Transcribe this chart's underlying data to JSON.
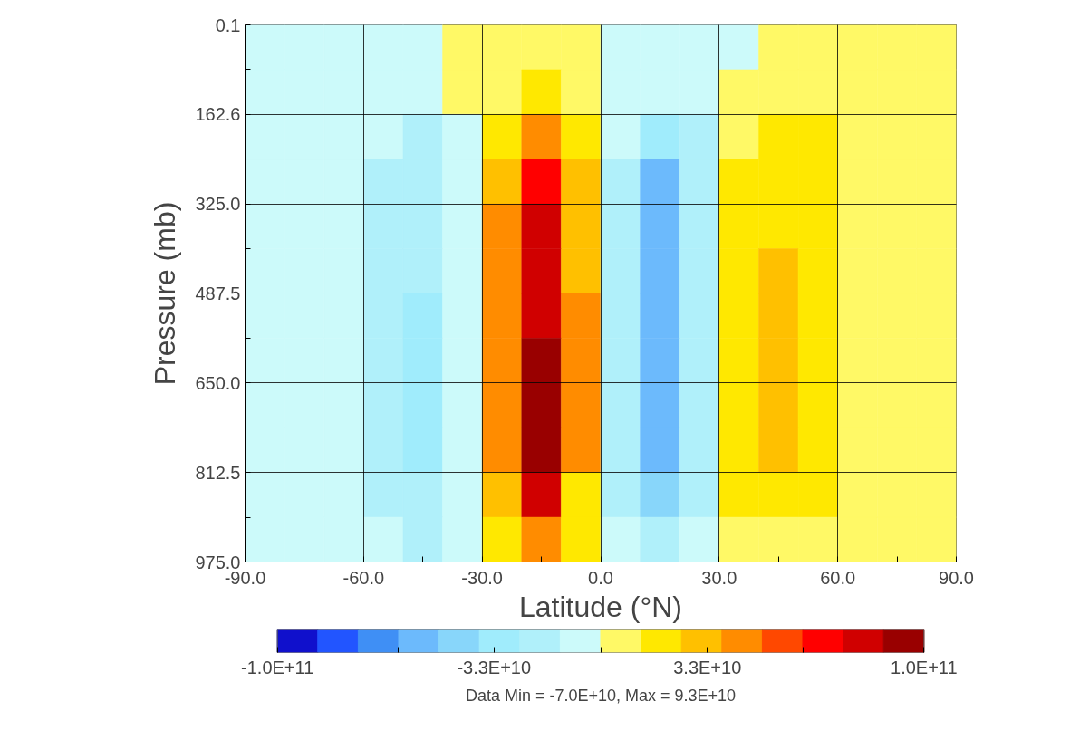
{
  "chart_data": {
    "type": "heatmap",
    "xlabel": "Latitude (°N)",
    "ylabel": "Pressure (mb)",
    "xlim": [
      -90,
      90
    ],
    "ylim": [
      975,
      0.1
    ],
    "xticks": [
      {
        "value": -90,
        "label": "-90.0"
      },
      {
        "value": -75,
        "label": null
      },
      {
        "value": -60,
        "label": "-60.0"
      },
      {
        "value": -45,
        "label": null
      },
      {
        "value": -30,
        "label": "-30.0"
      },
      {
        "value": -15,
        "label": null
      },
      {
        "value": 0,
        "label": "0.0"
      },
      {
        "value": 15,
        "label": null
      },
      {
        "value": 30,
        "label": "30.0"
      },
      {
        "value": 45,
        "label": null
      },
      {
        "value": 60,
        "label": "60.0"
      },
      {
        "value": 75,
        "label": null
      },
      {
        "value": 90,
        "label": "90.0"
      }
    ],
    "yticks": [
      0.1,
      {
        "value": 81.35,
        "label": null
      },
      162.6,
      {
        "value": 243.8,
        "label": null
      },
      {
        "value": 325,
        "label": "325.0"
      },
      {
        "value": 406.25,
        "label": null
      },
      487.5,
      {
        "value": 568.75,
        "label": null
      },
      {
        "value": 650,
        "label": "650.0"
      },
      {
        "value": 731.25,
        "label": null
      },
      812.5,
      {
        "value": 893.75,
        "label": null
      },
      {
        "value": 975,
        "label": "975.0"
      }
    ],
    "grid": true,
    "clim": [
      -100000000000.0,
      100000000000.0
    ],
    "cticks": [
      {
        "value": -100000000000.0,
        "label": "-1.0E+11"
      },
      {
        "value": -62500000000.0,
        "label": null
      },
      {
        "value": -33000000000.0,
        "label": "-3.3E+10"
      },
      {
        "value": 0,
        "label": null
      },
      {
        "value": 33000000000.0,
        "label": "3.3E+10"
      },
      {
        "value": 62500000000.0,
        "label": null
      },
      {
        "value": 100000000000.0,
        "label": "1.0E+11"
      }
    ],
    "colors": [
      "#1010cc",
      "#2255ff",
      "#3f8ff5",
      "#6cbafc",
      "#88d6fa",
      "#a0ecfc",
      "#b0f0fa",
      "#ccfafa",
      "#fff966",
      "#ffe800",
      "#ffc000",
      "#ff8c00",
      "#ff4800",
      "#ff0000",
      "#d00000",
      "#990000"
    ],
    "cells": [
      [
        -6200000000.0,
        -6200000000.0,
        -6200000000.0,
        -6200000000.0,
        -6200000000.0,
        6200000000.0,
        6200000000.0,
        6200000000.0,
        6200000000.0,
        -6200000000.0,
        -6200000000.0,
        -6200000000.0,
        -6200000000.0,
        6200000000.0,
        6200000000.0,
        6200000000.0,
        6200000000.0,
        6200000000.0
      ],
      [
        -6200000000.0,
        -6200000000.0,
        -6200000000.0,
        -6200000000.0,
        -6200000000.0,
        6200000000.0,
        6200000000.0,
        19000000000.0,
        6200000000.0,
        -6200000000.0,
        -6200000000.0,
        -6200000000.0,
        6200000000.0,
        6200000000.0,
        6200000000.0,
        6200000000.0,
        6200000000.0,
        6200000000.0
      ],
      [
        -6200000000.0,
        -6200000000.0,
        -6200000000.0,
        -6200000000.0,
        -19000000000.0,
        -6200000000.0,
        19000000000.0,
        44000000000.0,
        19000000000.0,
        -6200000000.0,
        -31000000000.0,
        -19000000000.0,
        6200000000.0,
        19000000000.0,
        19000000000.0,
        6200000000.0,
        6200000000.0,
        6200000000.0
      ],
      [
        -6200000000.0,
        -6200000000.0,
        -6200000000.0,
        -19000000000.0,
        -19000000000.0,
        -6200000000.0,
        31000000000.0,
        69000000000.0,
        31000000000.0,
        -19000000000.0,
        -56000000000.0,
        -19000000000.0,
        19000000000.0,
        19000000000.0,
        19000000000.0,
        6200000000.0,
        6200000000.0,
        6200000000.0
      ],
      [
        -6200000000.0,
        -6200000000.0,
        -6200000000.0,
        -19000000000.0,
        -19000000000.0,
        -6200000000.0,
        44000000000.0,
        81000000000.0,
        31000000000.0,
        -19000000000.0,
        -56000000000.0,
        -19000000000.0,
        19000000000.0,
        19000000000.0,
        19000000000.0,
        6200000000.0,
        6200000000.0,
        6200000000.0
      ],
      [
        -6200000000.0,
        -6200000000.0,
        -6200000000.0,
        -19000000000.0,
        -19000000000.0,
        -6200000000.0,
        44000000000.0,
        81000000000.0,
        31000000000.0,
        -19000000000.0,
        -56000000000.0,
        -19000000000.0,
        19000000000.0,
        31000000000.0,
        19000000000.0,
        6200000000.0,
        6200000000.0,
        6200000000.0
      ],
      [
        -6200000000.0,
        -6200000000.0,
        -6200000000.0,
        -19000000000.0,
        -31000000000.0,
        -6200000000.0,
        44000000000.0,
        81000000000.0,
        44000000000.0,
        -19000000000.0,
        -56000000000.0,
        -19000000000.0,
        19000000000.0,
        31000000000.0,
        19000000000.0,
        6200000000.0,
        6200000000.0,
        6200000000.0
      ],
      [
        -6200000000.0,
        -6200000000.0,
        -6200000000.0,
        -19000000000.0,
        -31000000000.0,
        -6200000000.0,
        44000000000.0,
        93000000000.0,
        44000000000.0,
        -19000000000.0,
        -56000000000.0,
        -19000000000.0,
        19000000000.0,
        31000000000.0,
        19000000000.0,
        6200000000.0,
        6200000000.0,
        6200000000.0
      ],
      [
        -6200000000.0,
        -6200000000.0,
        -6200000000.0,
        -19000000000.0,
        -31000000000.0,
        -6200000000.0,
        44000000000.0,
        93000000000.0,
        44000000000.0,
        -19000000000.0,
        -56000000000.0,
        -19000000000.0,
        19000000000.0,
        31000000000.0,
        19000000000.0,
        6200000000.0,
        6200000000.0,
        6200000000.0
      ],
      [
        -6200000000.0,
        -6200000000.0,
        -6200000000.0,
        -19000000000.0,
        -31000000000.0,
        -6200000000.0,
        44000000000.0,
        93000000000.0,
        44000000000.0,
        -19000000000.0,
        -56000000000.0,
        -19000000000.0,
        19000000000.0,
        31000000000.0,
        19000000000.0,
        6200000000.0,
        6200000000.0,
        6200000000.0
      ],
      [
        -6200000000.0,
        -6200000000.0,
        -6200000000.0,
        -19000000000.0,
        -19000000000.0,
        -6200000000.0,
        31000000000.0,
        81000000000.0,
        19000000000.0,
        -19000000000.0,
        -44000000000.0,
        -19000000000.0,
        19000000000.0,
        19000000000.0,
        19000000000.0,
        6200000000.0,
        6200000000.0,
        6200000000.0
      ],
      [
        -6200000000.0,
        -6200000000.0,
        -6200000000.0,
        -6200000000.0,
        -19000000000.0,
        -6200000000.0,
        19000000000.0,
        44000000000.0,
        19000000000.0,
        -6200000000.0,
        -19000000000.0,
        -6200000000.0,
        6200000000.0,
        6200000000.0,
        6200000000.0,
        6200000000.0,
        6200000000.0,
        6200000000.0
      ]
    ],
    "annotations": [
      "Data Min = -7.0E+10, Max = 9.3E+10"
    ]
  }
}
